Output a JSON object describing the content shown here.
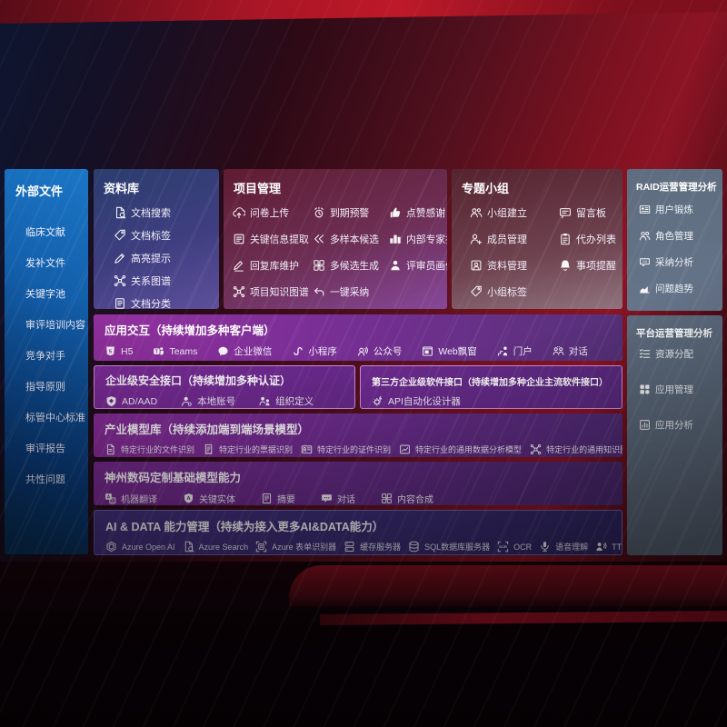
{
  "colors": {
    "accent_blue": "#1b76c6",
    "accent_purple": "#8b2d9d",
    "slate_panel": "#5f6d80",
    "bar_border": "#d887dd",
    "aidata_bg": "#3b2d74",
    "background_red": "#7c1220"
  },
  "sidebar": {
    "title": "外部文件",
    "items": [
      "临床文献",
      "发补文件",
      "关键字池",
      "审评培训内容",
      "竞争对手",
      "指导原则",
      "标管中心标准",
      "审评报告",
      "共性问题"
    ]
  },
  "panels": {
    "library": {
      "title": "资料库",
      "items": [
        {
          "label": "文档搜索",
          "icon": "doc-search-icon"
        },
        {
          "label": "文档标签",
          "icon": "tag-icon"
        },
        {
          "label": "高亮提示",
          "icon": "highlight-pen-icon"
        },
        {
          "label": "关系图谱",
          "icon": "knowledge-graph-icon"
        },
        {
          "label": "文档分类",
          "icon": "doc-classify-icon"
        }
      ]
    },
    "project": {
      "title": "项目管理",
      "items": [
        {
          "label": "问卷上传",
          "icon": "cloud-upload-icon"
        },
        {
          "label": "到期预警",
          "icon": "alarm-icon"
        },
        {
          "label": "点赞感谢",
          "icon": "thumbs-up-icon"
        },
        {
          "label": "关键信息提取",
          "icon": "info-extract-icon"
        },
        {
          "label": "多样本候选",
          "icon": "multi-sample-icon"
        },
        {
          "label": "内部专家排名",
          "icon": "expert-ranking-icon"
        },
        {
          "label": "回复库维护",
          "icon": "reply-maintain-icon"
        },
        {
          "label": "多候选生成",
          "icon": "multi-generate-icon"
        },
        {
          "label": "评审员画像",
          "icon": "reviewer-portrait-icon"
        },
        {
          "label": "项目知识图谱",
          "icon": "knowledge-graph-icon"
        },
        {
          "label": "一键采纳",
          "icon": "one-click-adopt-icon"
        }
      ]
    },
    "group": {
      "title": "专题小组",
      "items": [
        {
          "label": "小组建立",
          "icon": "team-create-icon"
        },
        {
          "label": "留言板",
          "icon": "message-board-icon"
        },
        {
          "label": "成员管理",
          "icon": "member-manage-icon"
        },
        {
          "label": "代办列表",
          "icon": "todo-list-icon"
        },
        {
          "label": "资料管理",
          "icon": "material-manage-icon"
        },
        {
          "label": "事项提醒",
          "icon": "reminder-bell-icon"
        },
        {
          "label": "小组标签",
          "icon": "tag-icon"
        }
      ]
    },
    "raid": {
      "title": "RAID运营管理分析",
      "items": [
        {
          "label": "用户锻炼",
          "icon": "user-card-icon"
        },
        {
          "label": "角色管理",
          "icon": "role-manage-icon"
        },
        {
          "label": "采纳分析",
          "icon": "adoption-analysis-icon"
        },
        {
          "label": "问题趋势",
          "icon": "trend-chart-icon"
        }
      ]
    },
    "platform": {
      "title": "平台运营管理分析",
      "items": [
        {
          "label": "资源分配",
          "icon": "resource-allocation-icon"
        },
        {
          "label": "应用管理",
          "icon": "app-manage-icon"
        },
        {
          "label": "应用分析",
          "icon": "app-analysis-icon"
        }
      ]
    },
    "interaction": {
      "title": "应用交互（持续增加多种客户端）",
      "items": [
        {
          "label": "H5",
          "icon": "h5-icon"
        },
        {
          "label": "Teams",
          "icon": "teams-icon"
        },
        {
          "label": "企业微信",
          "icon": "wecom-icon"
        },
        {
          "label": "小程序",
          "icon": "miniprogram-icon"
        },
        {
          "label": "公众号",
          "icon": "official-account-icon"
        },
        {
          "label": "Web飘窗",
          "icon": "web-popup-icon"
        },
        {
          "label": "门户",
          "icon": "portal-icon"
        },
        {
          "label": "对话",
          "icon": "dialogue-icon"
        }
      ]
    },
    "security": {
      "title": "企业级安全接口（持续增加多种认证）",
      "items": [
        {
          "label": "AD/AAD",
          "icon": "ad-shield-icon"
        },
        {
          "label": "本地账号",
          "icon": "local-account-icon"
        },
        {
          "label": "组织定义",
          "icon": "org-define-icon"
        }
      ]
    },
    "thirdparty": {
      "title": "第三方企业级软件接口（持续增加多种企业主流软件接口）",
      "items": [
        {
          "label": "API自动化设计器",
          "icon": "api-designer-icon"
        }
      ]
    },
    "industry": {
      "title": "产业模型库（持续添加端到端场景模型）",
      "items": [
        {
          "label": "特定行业的文件识别",
          "icon": "file-recognize-icon"
        },
        {
          "label": "特定行业的票据识别",
          "icon": "receipt-recognize-icon"
        },
        {
          "label": "特定行业的证件识别",
          "icon": "id-recognize-icon"
        },
        {
          "label": "特定行业的通用数据分析模型",
          "icon": "data-analysis-model-icon"
        },
        {
          "label": "特定行业的通用知识图谱模型",
          "icon": "knowledge-graph-icon"
        }
      ]
    },
    "foundation": {
      "title": "神州数码定制基础模型能力",
      "items": [
        {
          "label": "机器翻译",
          "icon": "translate-icon"
        },
        {
          "label": "关键实体",
          "icon": "key-entity-icon"
        },
        {
          "label": "摘要",
          "icon": "summary-icon"
        },
        {
          "label": "对话",
          "icon": "chat-icon"
        },
        {
          "label": "内容合成",
          "icon": "content-compose-icon"
        }
      ]
    },
    "aidata": {
      "title": "AI & DATA 能力管理（持续为接入更多AI&DATA能力）",
      "items": [
        {
          "label": "Azure Open AI",
          "icon": "openai-icon"
        },
        {
          "label": "Azure Search",
          "icon": "azure-search-icon"
        },
        {
          "label": "Azure 表单识别器",
          "icon": "form-recognizer-icon"
        },
        {
          "label": "缓存服务器",
          "icon": "cache-server-icon"
        },
        {
          "label": "SQL数据库服务器",
          "icon": "sql-server-icon"
        },
        {
          "label": "OCR",
          "icon": "ocr-icon"
        },
        {
          "label": "语音理解",
          "icon": "speech-understand-icon"
        },
        {
          "label": "TTS",
          "icon": "tts-icon"
        }
      ]
    }
  }
}
